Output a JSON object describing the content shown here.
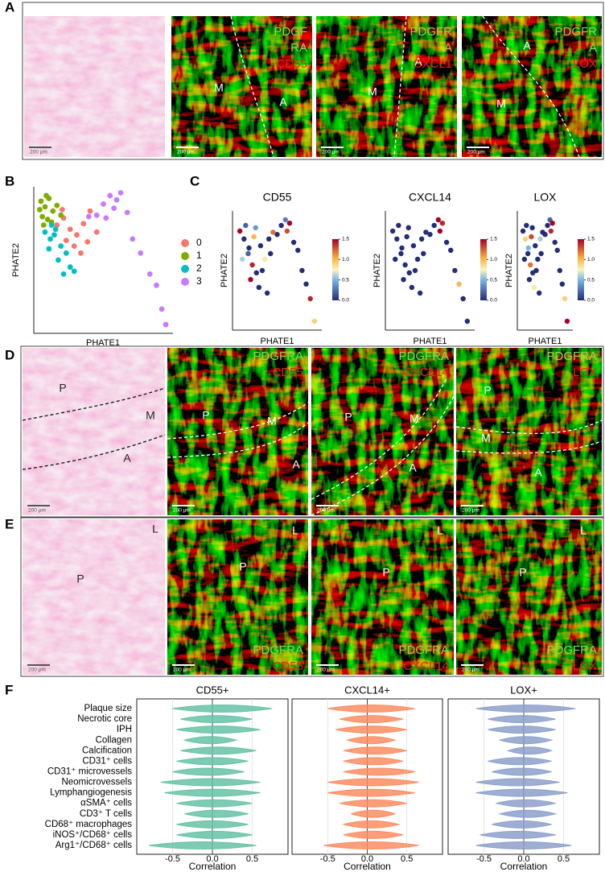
{
  "figure_labels": {
    "a": "A",
    "b": "B",
    "c": "C",
    "d": "D",
    "e": "E",
    "f": "F"
  },
  "panel_a": {
    "images": [
      {
        "scale": "200 μm"
      },
      {
        "stain": [
          "PDGF",
          "RA"
        ],
        "marker": [
          "CD55"
        ],
        "regions": [
          "M",
          "A"
        ],
        "scale": "200 μm"
      },
      {
        "stain": [
          "PDGFR",
          "A"
        ],
        "marker": [
          "CXCL1",
          "4"
        ],
        "regions": [
          "M",
          "A"
        ],
        "scale": "200 μm"
      },
      {
        "stain": [
          "PDGFR",
          "A"
        ],
        "marker": [
          "LOX"
        ],
        "regions": [
          "A",
          "M"
        ],
        "scale": "200 μm"
      }
    ]
  },
  "panel_d": {
    "images": [
      {
        "regions": [
          "P",
          "M",
          "A"
        ],
        "scale": "200 μm"
      },
      {
        "stain": [
          "PDGFRA"
        ],
        "marker": [
          "CD55"
        ],
        "regions": [
          "P",
          "M",
          "A"
        ],
        "scale": "200 μm"
      },
      {
        "stain": [
          "PDGFRA"
        ],
        "marker": [
          "CXCL14"
        ],
        "regions": [
          "P",
          "M",
          "A"
        ],
        "scale": "200 μm"
      },
      {
        "stain": [
          "PDGFRA"
        ],
        "marker": [
          "LOX"
        ],
        "regions": [
          "P",
          "M",
          "A"
        ],
        "scale": "200 μm"
      }
    ]
  },
  "panel_e": {
    "images": [
      {
        "regions": [
          "L",
          "P"
        ],
        "scale": "200 μm"
      },
      {
        "stain": [
          "PDGFRA"
        ],
        "marker": [
          "CD55"
        ],
        "regions": [
          "L",
          "P"
        ],
        "scale": "200 μm"
      },
      {
        "stain": [
          "PDGFRA"
        ],
        "marker": [
          "CXCL14"
        ],
        "regions": [
          "L",
          "P"
        ],
        "scale": "200 μm"
      },
      {
        "stain": [
          "PDGFRA"
        ],
        "marker": [
          "LOX"
        ],
        "regions": [
          "L",
          "P"
        ],
        "scale": "200 μm"
      }
    ]
  },
  "chart_data": [
    {
      "type": "scatter",
      "xlabel": "PHATE1",
      "ylabel": "PHATE2",
      "xlim": [
        0,
        10
      ],
      "ylim": [
        0,
        10
      ],
      "series": [
        {
          "name": "0",
          "color": "#f8766d",
          "x": [
            1.5,
            2.0,
            2.5,
            3.0,
            3.5,
            4.0,
            2.8,
            3.3,
            4.5,
            2.2,
            3.8,
            1.9
          ],
          "y": [
            7.5,
            8.0,
            7.2,
            6.8,
            7.6,
            8.5,
            6.0,
            5.5,
            7.0,
            6.4,
            6.3,
            8.6
          ]
        },
        {
          "name": "1",
          "color": "#7cae00",
          "x": [
            0.3,
            0.6,
            0.9,
            1.2,
            0.4,
            0.8,
            1.5,
            0.5,
            1.1,
            0.2,
            1.8,
            0.7
          ],
          "y": [
            9.2,
            8.8,
            9.4,
            8.5,
            8.1,
            7.9,
            8.9,
            7.5,
            7.7,
            8.6,
            8.2,
            9.6
          ]
        },
        {
          "name": "2",
          "color": "#00bfc4",
          "x": [
            0.6,
            1.0,
            1.4,
            1.8,
            2.2,
            0.9,
            1.6,
            2.5,
            1.3,
            2.0,
            2.8,
            1.1
          ],
          "y": [
            7.0,
            6.5,
            7.2,
            6.0,
            5.5,
            5.8,
            5.0,
            4.5,
            6.8,
            4.0,
            4.2,
            7.5
          ]
        },
        {
          "name": "3",
          "color": "#c77cff",
          "x": [
            5.0,
            5.5,
            6.0,
            6.3,
            5.8,
            6.8,
            4.5,
            5.2,
            7.2,
            7.8,
            8.5,
            9.0,
            9.4,
            9.7,
            3.9
          ],
          "y": [
            9.0,
            9.6,
            9.3,
            9.8,
            8.7,
            8.4,
            8.2,
            8.0,
            6.5,
            5.5,
            4.0,
            3.2,
            1.5,
            0.4,
            8.1
          ]
        }
      ]
    },
    {
      "type": "scatter",
      "xlabel": "PHATE1",
      "ylabel": "PHATE2",
      "xlim": [
        0,
        10
      ],
      "ylim": [
        0,
        10
      ],
      "clim": [
        0,
        1.5
      ],
      "cticks": [
        {
          "value": 0,
          "label": "0.0"
        },
        0.5,
        {
          "value": 1,
          "label": "1.0"
        },
        1.5
      ],
      "x": [
        0.5,
        1.0,
        1.5,
        2.0,
        2.5,
        3.0,
        3.5,
        4.0,
        4.5,
        5.0,
        5.5,
        6.0,
        6.5,
        7.0,
        7.5,
        8.0,
        8.5,
        9.0,
        9.5,
        1.2,
        2.2,
        3.2,
        1.8,
        2.8,
        0.8,
        1.6,
        2.4,
        6.2,
        4.2,
        3.8
      ],
      "y": [
        8.5,
        7.8,
        6.5,
        5.5,
        4.8,
        7.2,
        6.0,
        7.8,
        8.4,
        8.2,
        9.0,
        9.5,
        9.2,
        7.5,
        6.8,
        5.0,
        3.8,
        2.5,
        0.5,
        9.0,
        8.0,
        5.0,
        4.2,
        3.5,
        6.0,
        7.0,
        8.8,
        8.5,
        6.5,
        3.0
      ],
      "series": [
        {
          "name": "CD55",
          "values": [
            1.5,
            0,
            0.2,
            1.4,
            0,
            0,
            0.8,
            0,
            1.2,
            0,
            0,
            0.3,
            1.5,
            0,
            0,
            0,
            0,
            1.4,
            0.9,
            0.2,
            1.0,
            0,
            1.5,
            0,
            0.6,
            0,
            0.4,
            1.3,
            0,
            0
          ]
        },
        {
          "name": "CXCL14",
          "values": [
            0,
            0,
            0,
            0,
            0,
            0,
            0,
            0,
            0,
            0,
            0,
            1.5,
            1.4,
            0,
            0,
            0,
            1.0,
            0,
            0,
            0,
            0,
            0,
            0,
            0,
            0,
            0,
            0,
            1.5,
            0,
            0
          ]
        },
        {
          "name": "LOX",
          "values": [
            0,
            0.9,
            0,
            1.2,
            0,
            0,
            0,
            0.6,
            0,
            0,
            0,
            0.2,
            1.5,
            0,
            0,
            0,
            0,
            0.9,
            1.5,
            0,
            1.3,
            0,
            0,
            0.8,
            0,
            0.5,
            0,
            1.4,
            0,
            0
          ]
        }
      ]
    },
    {
      "type": "violin",
      "xlabel": "Correlation",
      "xlim": [
        -0.95,
        0.95
      ],
      "xticks": [
        -0.5,
        {
          "value": 0,
          "label": "0.0"
        },
        0.5
      ],
      "categories": [
        "Plaque size",
        "Necrotic core",
        "IPH",
        "Collagen",
        "Calcification",
        "CD31⁺ cells",
        "CD31⁺ microvessels",
        "Neomicrovessels",
        "Lymphangiogenesis",
        "αSMA⁺ cells",
        "CD3⁺ T cells",
        "CD68⁺ macrophages",
        "iNOS⁺/CD68⁺ cells",
        "Arg1⁺/CD68⁺ cells"
      ],
      "series": [
        {
          "name": "CD55+",
          "color": "#66c2a5",
          "lo": [
            -0.5,
            -0.4,
            -0.45,
            -0.35,
            -0.4,
            -0.45,
            -0.5,
            -0.65,
            -0.6,
            -0.45,
            -0.35,
            -0.45,
            -0.45,
            -0.8
          ],
          "hi": [
            0.75,
            0.5,
            0.6,
            0.3,
            0.55,
            0.45,
            0.4,
            0.6,
            0.6,
            0.5,
            0.45,
            0.45,
            0.5,
            0.55
          ]
        },
        {
          "name": "CXCL14+",
          "color": "#fc8d62",
          "lo": [
            -0.5,
            -0.35,
            -0.4,
            -0.25,
            -0.3,
            -0.3,
            -0.3,
            -0.5,
            -0.5,
            -0.35,
            -0.2,
            -0.3,
            -0.3,
            -0.55
          ],
          "hi": [
            0.6,
            0.45,
            0.5,
            0.35,
            0.5,
            0.45,
            0.6,
            0.65,
            0.6,
            0.5,
            0.35,
            0.4,
            0.45,
            0.65
          ]
        },
        {
          "name": "LOX+",
          "color": "#8da0cb",
          "lo": [
            -0.6,
            -0.45,
            -0.45,
            -0.3,
            -0.2,
            -0.45,
            -0.4,
            -0.6,
            -0.6,
            -0.35,
            -0.3,
            -0.4,
            -0.55,
            -0.6
          ],
          "hi": [
            0.65,
            0.4,
            0.4,
            0.35,
            0.35,
            0.35,
            0.35,
            0.45,
            0.55,
            0.4,
            0.4,
            0.35,
            0.4,
            0.6
          ]
        }
      ]
    }
  ]
}
